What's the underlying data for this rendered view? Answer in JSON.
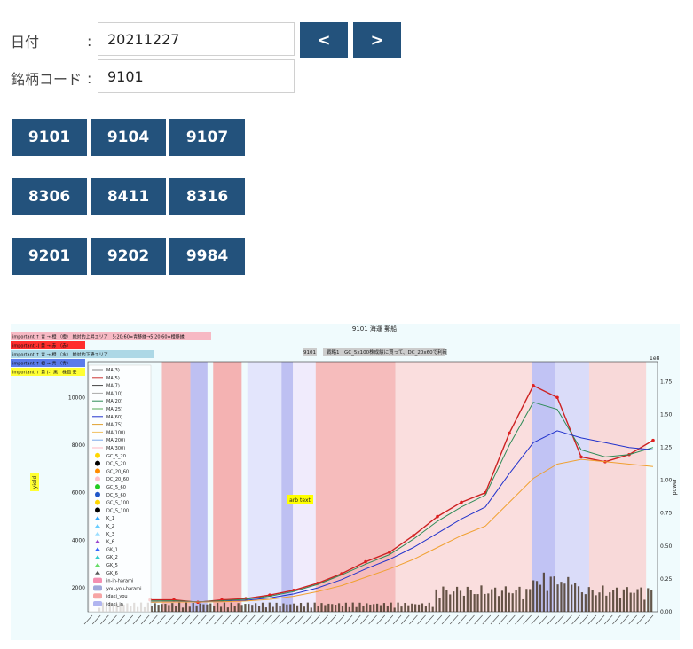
{
  "form": {
    "date_label": "日付",
    "date_colon": ":",
    "date_value": "20211227",
    "code_label": "銘柄コード",
    "code_colon": ":",
    "code_value": "9101",
    "prev_label": "<",
    "next_label": ">"
  },
  "quick_codes": [
    [
      "9101",
      "9104",
      "9107"
    ],
    [
      "8306",
      "8411",
      "8316"
    ],
    [
      "9201",
      "9202",
      "9984"
    ]
  ],
  "chart": {
    "title": "9101 海運 郵船",
    "ylabel_left": "yield",
    "ylabel_right": "power",
    "right_scale": "1e8",
    "legend_bars": [
      {
        "text": "important ↑ 青 → 橙 （橙） 絶対的上昇エリア　5:20:60=青移縁→5:20:60=橙移縁",
        "color": "#f7b9c4"
      },
      {
        "text": "important(-) 黄 → 赤 （赤）",
        "color": "#ff2d2d"
      },
      {
        "text": "important ↑ 青 → 橙 （水） 絶対的下降エリア",
        "color": "#add8e6"
      },
      {
        "text": "important ↑ 橙 → 青 （青）",
        "color": "#5b7bea"
      },
      {
        "text": "important ↑ 黄 (-) 黒　株価 安",
        "color": "#ffff33"
      }
    ],
    "tag_code": "9101",
    "tag_strategy": "戦略1　GC_5x100株成績に買って、DC_20x60で利確",
    "arb_text": "arb text",
    "legend_items": [
      "MA(3)",
      "MA(5)",
      "MA(7)",
      "MA(10)",
      "MA(20)",
      "MA(25)",
      "MA(60)",
      "MA(75)",
      "MA(100)",
      "MA(200)",
      "MA(300)",
      "GC_5_20",
      "DC_5_20",
      "GC_20_60",
      "DC_20_60",
      "GC_5_60",
      "DC_5_60",
      "GC_5_100",
      "DC_5_100",
      "K_1",
      "K_2",
      "K_3",
      "K_6",
      "GK_1",
      "GK_2",
      "GK_5",
      "GK_6",
      "in-in-harami",
      "you-you-harami",
      "idaki_you",
      "idaki_in"
    ],
    "legend_colors": [
      "#888888",
      "#cc3333",
      "#444444",
      "#aaaaaa",
      "#2e8b57",
      "#55aa55",
      "#2233cc",
      "#e0a030",
      "#f0c060",
      "#7aa7e8",
      "#ffb6c1",
      "#ffd700",
      "#000000",
      "#ff8c00",
      "#ffc0cb",
      "#22cc22",
      "#1e56c8",
      "#ffd700",
      "#000000",
      "#33aaff",
      "#66ccff",
      "#99ddff",
      "#9944cc",
      "#3366ff",
      "#33cccc",
      "#66dd66",
      "#555555",
      "#f48fb1",
      "#9fa8da",
      "#f6a5a5",
      "#b0b5f0"
    ],
    "y_ticks_left": [
      "10000",
      "8000",
      "6000",
      "4000",
      "2000"
    ],
    "y_ticks_right": [
      "1.75",
      "1.50",
      "1.25",
      "1.00",
      "0.75",
      "0.50",
      "0.25",
      "0.00"
    ]
  },
  "chart_data": {
    "type": "line",
    "title": "9101 海運 郵船",
    "ylabel": "yield",
    "y2label": "power",
    "ylim": [
      1000,
      11500
    ],
    "y2lim": [
      0,
      1.9
    ],
    "series": [
      {
        "values": [
          1500,
          1500,
          1400,
          1500,
          1550,
          1700,
          1900,
          2200,
          2600,
          3100,
          3500,
          4200,
          5000,
          5600,
          6000,
          8500,
          10500,
          10000,
          7500,
          7300,
          7600,
          8200
        ]
      },
      {
        "values": [
          1450,
          1460,
          1420,
          1460,
          1520,
          1650,
          1850,
          2150,
          2550,
          3000,
          3400,
          4050,
          4800,
          5400,
          5900,
          8000,
          9800,
          9500,
          7800,
          7500,
          7600,
          7900
        ]
      },
      {
        "values": [
          1400,
          1420,
          1420,
          1430,
          1480,
          1580,
          1750,
          2000,
          2350,
          2800,
          3200,
          3700,
          4300,
          4900,
          5400,
          6800,
          8100,
          8600,
          8300,
          8100,
          7900,
          7800
        ]
      },
      {
        "values": [
          1400,
          1410,
          1410,
          1420,
          1450,
          1520,
          1650,
          1850,
          2100,
          2450,
          2800,
          3200,
          3700,
          4200,
          4600,
          5600,
          6600,
          7200,
          7400,
          7300,
          7200,
          7100
        ]
      }
    ]
  }
}
